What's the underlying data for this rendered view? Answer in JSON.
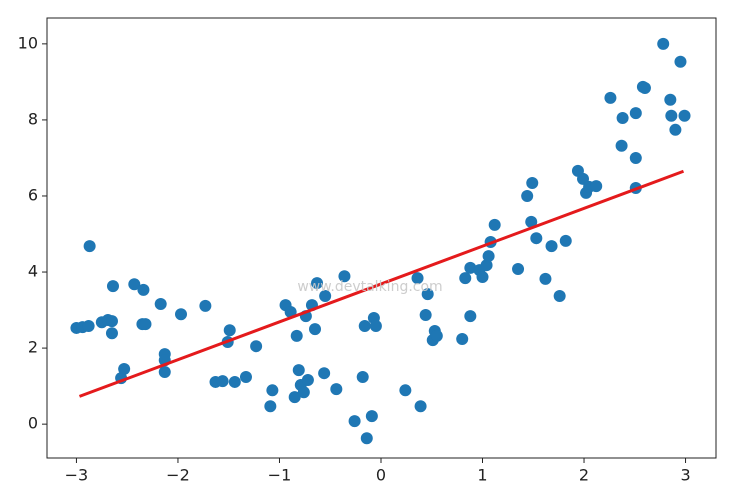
{
  "chart_data": {
    "type": "scatter",
    "annotation": "www.devtalking.com",
    "x": [
      -3.0,
      -2.94,
      -2.88,
      -2.87,
      -2.75,
      -2.69,
      -2.65,
      -2.65,
      -2.64,
      -2.56,
      -2.53,
      -2.43,
      -2.34,
      -2.35,
      -2.32,
      -2.17,
      -2.13,
      -2.13,
      -2.13,
      -1.97,
      -1.73,
      -1.63,
      -1.56,
      -1.51,
      -1.49,
      -1.44,
      -1.33,
      -1.23,
      -1.09,
      -1.07,
      -0.94,
      -0.89,
      -0.85,
      -0.83,
      -0.81,
      -0.79,
      -0.76,
      -0.74,
      -0.72,
      -0.68,
      -0.65,
      -0.63,
      -0.56,
      -0.55,
      -0.44,
      -0.36,
      -0.26,
      -0.18,
      -0.16,
      -0.14,
      -0.09,
      -0.07,
      -0.05,
      0.24,
      0.36,
      0.39,
      0.44,
      0.46,
      0.51,
      0.53,
      0.55,
      0.8,
      0.83,
      0.88,
      0.88,
      0.97,
      1.0,
      1.04,
      1.06,
      1.08,
      1.12,
      1.35,
      1.44,
      1.48,
      1.49,
      1.53,
      1.62,
      1.68,
      1.76,
      1.82,
      1.94,
      1.99,
      2.02,
      2.05,
      2.12,
      2.26,
      2.37,
      2.38,
      2.51,
      2.51,
      2.51,
      2.58,
      2.6,
      2.78,
      2.85,
      2.86,
      2.9,
      2.95,
      2.99
    ],
    "values": [
      2.53,
      2.55,
      2.58,
      4.68,
      2.68,
      2.74,
      2.71,
      2.39,
      3.63,
      1.21,
      1.45,
      3.68,
      3.53,
      2.63,
      2.63,
      3.16,
      1.84,
      1.68,
      1.37,
      2.89,
      3.11,
      1.11,
      1.13,
      2.16,
      2.47,
      1.11,
      1.24,
      2.05,
      0.47,
      0.89,
      3.13,
      2.95,
      0.71,
      2.32,
      1.42,
      1.03,
      0.84,
      2.84,
      1.16,
      3.13,
      2.5,
      3.71,
      1.34,
      3.37,
      0.92,
      3.89,
      0.08,
      1.24,
      2.58,
      -0.37,
      0.21,
      2.79,
      2.58,
      0.89,
      3.84,
      0.47,
      2.87,
      3.42,
      2.21,
      2.45,
      2.32,
      2.24,
      3.84,
      2.84,
      4.11,
      4.05,
      3.87,
      4.18,
      4.42,
      4.79,
      5.24,
      4.08,
      6.0,
      5.32,
      6.34,
      4.89,
      3.82,
      4.68,
      3.37,
      4.82,
      6.66,
      6.45,
      6.08,
      6.24,
      6.26,
      8.58,
      7.32,
      8.05,
      7.0,
      8.18,
      6.21,
      8.87,
      8.84,
      10.0,
      8.53,
      8.11,
      7.74,
      9.53,
      8.11
    ],
    "color": "#1f77b4",
    "fit": {
      "x": [
        -2.97,
        2.98
      ],
      "values": [
        0.73,
        6.65
      ],
      "color": "#e41a1c"
    },
    "xlim": [
      -3.29,
      3.3
    ],
    "ylim": [
      -0.89,
      10.68
    ],
    "xticks": [
      {
        "value": -3,
        "label": "−3"
      },
      {
        "value": -2,
        "label": "−2"
      },
      {
        "value": -1,
        "label": "−1"
      },
      0,
      1,
      2,
      3
    ],
    "yticks": [
      0,
      2,
      4,
      6,
      8,
      10
    ]
  }
}
